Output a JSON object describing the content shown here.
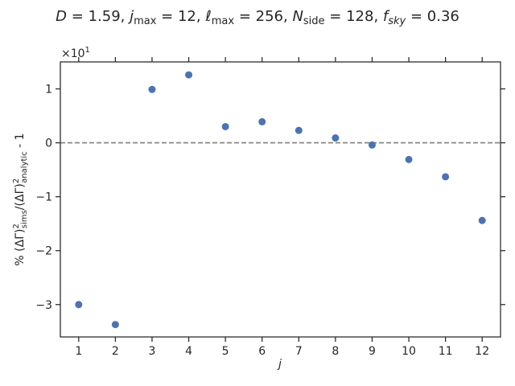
{
  "chart_data": {
    "type": "scatter",
    "title": "D = 1.59,  j_max = 12,  ℓ_max = 256,  N_side = 128,  f_sky = 0.36",
    "title_parts": {
      "D": "1.59",
      "jmax": "12",
      "lmax": "256",
      "nside": "128",
      "fsky": "0.36"
    },
    "xlabel": "j",
    "ylabel": "% (ΔΓ)²_sims/(ΔΓ)²_analytic - 1",
    "y_offset_label": "×10¹",
    "x": [
      1,
      2,
      3,
      4,
      5,
      6,
      7,
      8,
      9,
      10,
      11,
      12
    ],
    "y": [
      -30.0,
      -33.7,
      9.9,
      12.6,
      3.0,
      3.9,
      2.3,
      0.9,
      -0.4,
      -3.1,
      -6.3,
      -14.4
    ],
    "xlim": [
      0.5,
      12.5
    ],
    "ylim": [
      -36,
      15
    ],
    "x_ticks": [
      1,
      2,
      3,
      4,
      5,
      6,
      7,
      8,
      9,
      10,
      11,
      12
    ],
    "x_tick_labels": [
      "1",
      "2",
      "3",
      "4",
      "5",
      "6",
      "7",
      "8",
      "9",
      "10",
      "11",
      "12"
    ],
    "y_ticks": [
      -30,
      -20,
      -10,
      0,
      10
    ],
    "y_tick_labels": [
      "−3",
      "−2",
      "−1",
      "0",
      "1"
    ],
    "reference_line": {
      "y": 0,
      "style": "dashed",
      "color": "#808080"
    },
    "marker_color": "#4c72b0",
    "grid": false
  }
}
